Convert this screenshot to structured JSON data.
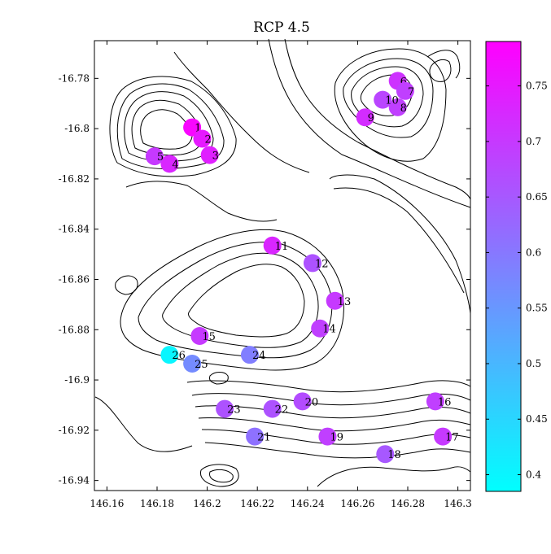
{
  "chart_data": {
    "type": "scatter",
    "title": "RCP 4.5",
    "xlabel": "",
    "ylabel": "",
    "xlim": [
      146.155,
      146.305
    ],
    "ylim": [
      -16.944,
      -16.765
    ],
    "xticks": [
      146.16,
      146.18,
      146.2,
      146.22,
      146.24,
      146.26,
      146.28,
      146.3
    ],
    "yticks": [
      -16.78,
      -16.8,
      -16.82,
      -16.84,
      -16.86,
      -16.88,
      -16.9,
      -16.92,
      -16.94
    ],
    "xtick_labels": [
      "146.16",
      "146.18",
      "146.2",
      "146.22",
      "146.24",
      "146.26",
      "146.28",
      "146.3"
    ],
    "ytick_labels": [
      "-16.78",
      "-16.8",
      "-16.82",
      "-16.84",
      "-16.86",
      "-16.88",
      "-16.9",
      "-16.92",
      "-16.94"
    ],
    "colorbar": {
      "range": [
        0.385,
        0.79
      ],
      "ticks": [
        0.4,
        0.45,
        0.5,
        0.55,
        0.6,
        0.65,
        0.7,
        0.75
      ],
      "tick_labels": [
        "0.4",
        "0.45",
        "0.5",
        "0.55",
        "0.6",
        "0.65",
        "0.7",
        "0.75"
      ],
      "color_low": "#00ffff",
      "color_high": "#ff00ff"
    },
    "points": [
      {
        "label": "1",
        "x": 146.194,
        "y": -16.7995,
        "value": 0.78
      },
      {
        "label": "2",
        "x": 146.198,
        "y": -16.804,
        "value": 0.75
      },
      {
        "label": "3",
        "x": 146.201,
        "y": -16.8105,
        "value": 0.74
      },
      {
        "label": "4",
        "x": 146.185,
        "y": -16.814,
        "value": 0.73
      },
      {
        "label": "5",
        "x": 146.179,
        "y": -16.811,
        "value": 0.7
      },
      {
        "label": "6",
        "x": 146.276,
        "y": -16.781,
        "value": 0.71
      },
      {
        "label": "7",
        "x": 146.279,
        "y": -16.785,
        "value": 0.69
      },
      {
        "label": "8",
        "x": 146.276,
        "y": -16.7915,
        "value": 0.69
      },
      {
        "label": "9",
        "x": 146.263,
        "y": -16.7955,
        "value": 0.72
      },
      {
        "label": "10",
        "x": 146.27,
        "y": -16.7885,
        "value": 0.68
      },
      {
        "label": "11",
        "x": 146.226,
        "y": -16.8465,
        "value": 0.73
      },
      {
        "label": "12",
        "x": 146.242,
        "y": -16.8535,
        "value": 0.66
      },
      {
        "label": "13",
        "x": 146.251,
        "y": -16.8685,
        "value": 0.7
      },
      {
        "label": "14",
        "x": 146.245,
        "y": -16.8795,
        "value": 0.69
      },
      {
        "label": "15",
        "x": 146.197,
        "y": -16.8825,
        "value": 0.7
      },
      {
        "label": "16",
        "x": 146.291,
        "y": -16.9085,
        "value": 0.69
      },
      {
        "label": "17",
        "x": 146.294,
        "y": -16.9225,
        "value": 0.7
      },
      {
        "label": "18",
        "x": 146.271,
        "y": -16.9295,
        "value": 0.65
      },
      {
        "label": "19",
        "x": 146.248,
        "y": -16.9225,
        "value": 0.69
      },
      {
        "label": "20",
        "x": 146.238,
        "y": -16.9085,
        "value": 0.67
      },
      {
        "label": "21",
        "x": 146.219,
        "y": -16.9225,
        "value": 0.61
      },
      {
        "label": "22",
        "x": 146.226,
        "y": -16.9115,
        "value": 0.66
      },
      {
        "label": "23",
        "x": 146.207,
        "y": -16.9115,
        "value": 0.66
      },
      {
        "label": "24",
        "x": 146.217,
        "y": -16.89,
        "value": 0.59
      },
      {
        "label": "25",
        "x": 146.194,
        "y": -16.8935,
        "value": 0.57
      },
      {
        "label": "26",
        "x": 146.185,
        "y": -16.89,
        "value": 0.4
      }
    ]
  }
}
